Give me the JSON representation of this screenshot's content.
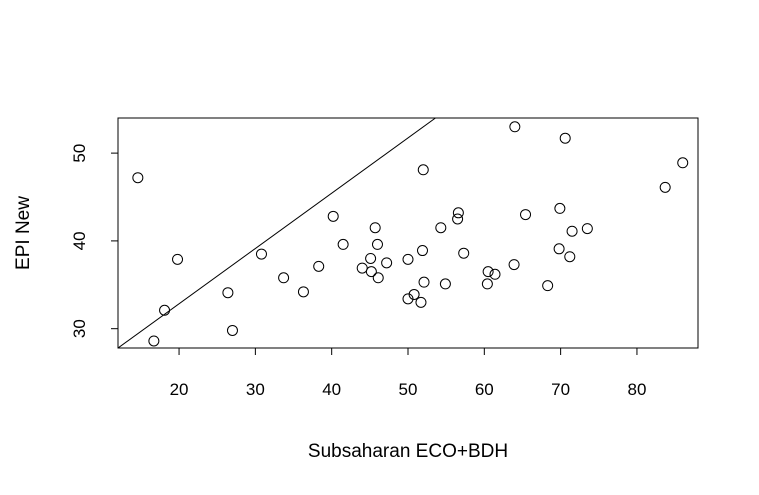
{
  "chart_data": {
    "type": "scatter",
    "title": "",
    "xlabel": "Subsaharan ECO+BDH",
    "ylabel": "EPI New",
    "xlim": [
      12,
      88
    ],
    "ylim": [
      27.8,
      54
    ],
    "xticks": [
      20,
      30,
      40,
      50,
      60,
      70,
      80
    ],
    "yticks": [
      30,
      40,
      50
    ],
    "grid": false,
    "legend": "none",
    "reference_line": {
      "x": [
        12,
        53.6
      ],
      "y": [
        27.8,
        54
      ]
    },
    "points": [
      {
        "x": 14.6,
        "y": 47.2
      },
      {
        "x": 16.7,
        "y": 28.6
      },
      {
        "x": 18.1,
        "y": 32.1
      },
      {
        "x": 19.8,
        "y": 37.9
      },
      {
        "x": 26.4,
        "y": 34.1
      },
      {
        "x": 27.0,
        "y": 29.8
      },
      {
        "x": 30.8,
        "y": 38.5
      },
      {
        "x": 33.7,
        "y": 35.8
      },
      {
        "x": 36.3,
        "y": 34.2
      },
      {
        "x": 38.3,
        "y": 37.1
      },
      {
        "x": 40.2,
        "y": 42.8
      },
      {
        "x": 41.5,
        "y": 39.6
      },
      {
        "x": 44.0,
        "y": 36.9
      },
      {
        "x": 45.1,
        "y": 38.0
      },
      {
        "x": 45.2,
        "y": 36.5
      },
      {
        "x": 45.7,
        "y": 41.5
      },
      {
        "x": 46.0,
        "y": 39.6
      },
      {
        "x": 46.1,
        "y": 35.8
      },
      {
        "x": 47.2,
        "y": 37.5
      },
      {
        "x": 50.0,
        "y": 33.4
      },
      {
        "x": 50.0,
        "y": 37.9
      },
      {
        "x": 50.8,
        "y": 33.9
      },
      {
        "x": 51.7,
        "y": 33.0
      },
      {
        "x": 51.9,
        "y": 38.9
      },
      {
        "x": 52.0,
        "y": 48.1
      },
      {
        "x": 52.1,
        "y": 35.3
      },
      {
        "x": 54.3,
        "y": 41.5
      },
      {
        "x": 54.9,
        "y": 35.1
      },
      {
        "x": 56.5,
        "y": 42.5
      },
      {
        "x": 56.6,
        "y": 43.2
      },
      {
        "x": 57.3,
        "y": 38.6
      },
      {
        "x": 60.4,
        "y": 35.1
      },
      {
        "x": 60.5,
        "y": 36.5
      },
      {
        "x": 61.4,
        "y": 36.2
      },
      {
        "x": 63.9,
        "y": 37.3
      },
      {
        "x": 64.0,
        "y": 53.0
      },
      {
        "x": 65.4,
        "y": 43.0
      },
      {
        "x": 68.3,
        "y": 34.9
      },
      {
        "x": 69.8,
        "y": 39.1
      },
      {
        "x": 69.9,
        "y": 43.7
      },
      {
        "x": 70.6,
        "y": 51.7
      },
      {
        "x": 71.2,
        "y": 38.2
      },
      {
        "x": 71.5,
        "y": 41.1
      },
      {
        "x": 73.5,
        "y": 41.4
      },
      {
        "x": 83.7,
        "y": 46.1
      },
      {
        "x": 86.0,
        "y": 48.9
      }
    ]
  }
}
